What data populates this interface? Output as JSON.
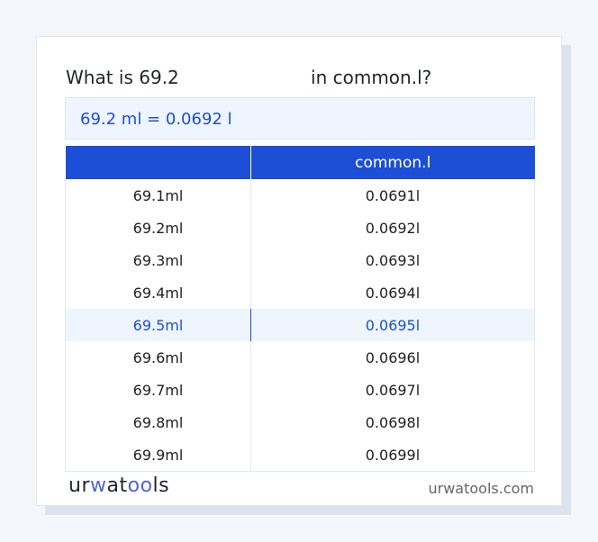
{
  "title": {
    "prefix": "What is 69.2",
    "suffix": "in common.l?"
  },
  "result": "69.2 ml = 0.0692 l",
  "table": {
    "headers": [
      "",
      "common.l"
    ],
    "rows": [
      [
        "69.1ml",
        "0.0691l"
      ],
      [
        "69.2ml",
        "0.0692l"
      ],
      [
        "69.3ml",
        "0.0693l"
      ],
      [
        "69.4ml",
        "0.0694l"
      ],
      [
        "69.5ml",
        "0.0695l"
      ],
      [
        "69.6ml",
        "0.0696l"
      ],
      [
        "69.7ml",
        "0.0697l"
      ],
      [
        "69.8ml",
        "0.0698l"
      ],
      [
        "69.9ml",
        "0.0699l"
      ]
    ],
    "highlighted_row": 4
  },
  "footer": {
    "logo": "urwatools",
    "site": "urwatools.com"
  },
  "colors": {
    "accent": "#1d4fd6",
    "highlight_bg": "#eef5fe"
  }
}
